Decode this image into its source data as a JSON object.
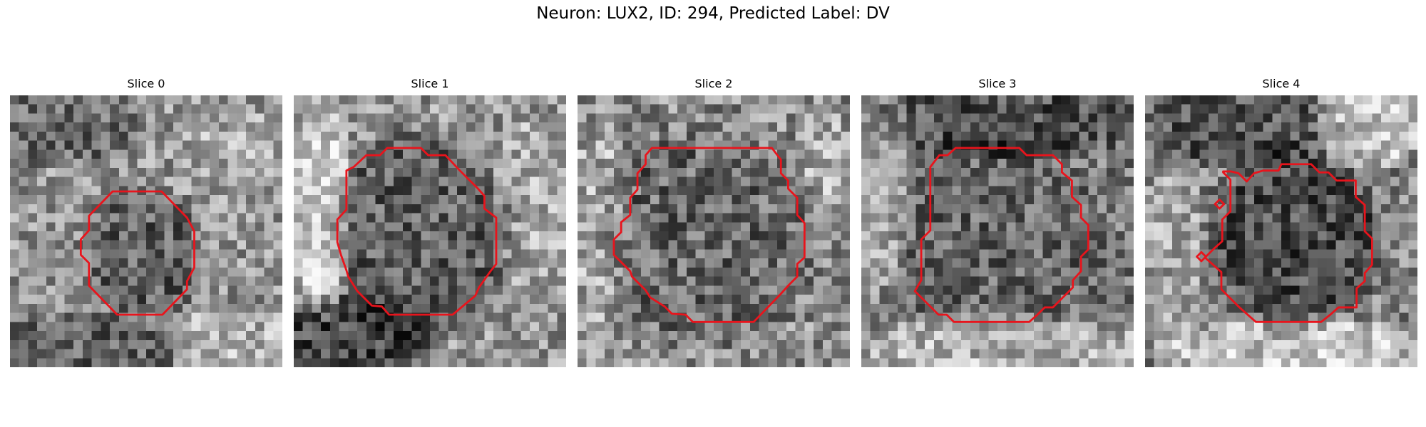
{
  "figure": {
    "title": "Neuron: LUX2, ID: 294, Predicted Label: DV",
    "colormap": "grayscale",
    "contour_color": "#e8141c"
  },
  "slices": [
    {
      "title": "Slice 0"
    },
    {
      "title": "Slice 1"
    },
    {
      "title": "Slice 2"
    },
    {
      "title": "Slice 3"
    },
    {
      "title": "Slice 4"
    }
  ]
}
